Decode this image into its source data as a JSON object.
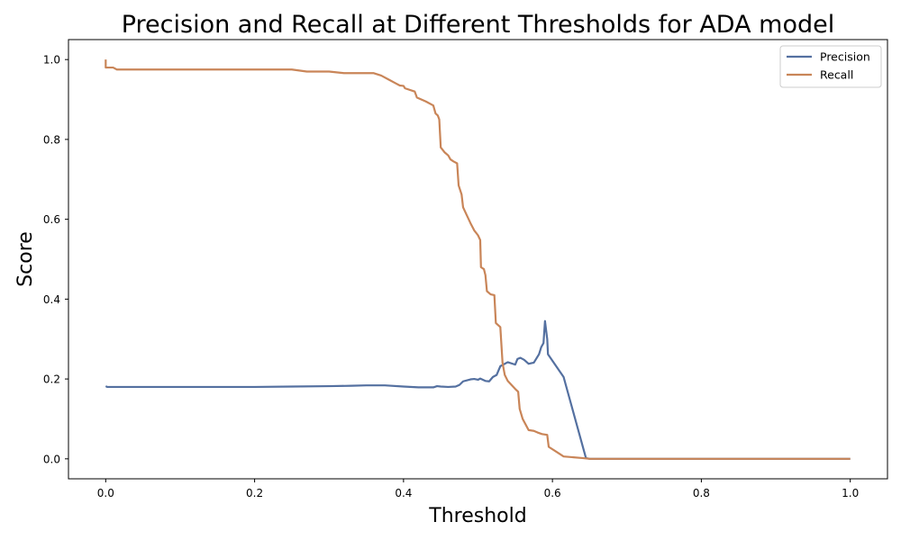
{
  "chart_data": {
    "type": "line",
    "title": "Precision and Recall at Different Thresholds for ADA  model",
    "xlabel": "Threshold",
    "ylabel": "Score",
    "xlim": [
      -0.05,
      1.05
    ],
    "ylim": [
      -0.05,
      1.05
    ],
    "xticks": [
      0.0,
      0.2,
      0.4,
      0.6,
      0.8,
      1.0
    ],
    "xtick_labels": [
      "0.0",
      "0.2",
      "0.4",
      "0.6",
      "0.8",
      "1.0"
    ],
    "yticks": [
      0.0,
      0.2,
      0.4,
      0.6,
      0.8,
      1.0
    ],
    "ytick_labels": [
      "0.0",
      "0.2",
      "0.4",
      "0.6",
      "0.8",
      "1.0"
    ],
    "grid": false,
    "legend": "top-right",
    "series": [
      {
        "name": "Precision",
        "color": "#5470a0",
        "points": [
          [
            0.0,
            0.182
          ],
          [
            0.002,
            0.18
          ],
          [
            0.02,
            0.18
          ],
          [
            0.1,
            0.18
          ],
          [
            0.2,
            0.18
          ],
          [
            0.25,
            0.181
          ],
          [
            0.3,
            0.182
          ],
          [
            0.33,
            0.183
          ],
          [
            0.35,
            0.184
          ],
          [
            0.375,
            0.184
          ],
          [
            0.4,
            0.181
          ],
          [
            0.42,
            0.179
          ],
          [
            0.44,
            0.179
          ],
          [
            0.445,
            0.182
          ],
          [
            0.45,
            0.181
          ],
          [
            0.46,
            0.18
          ],
          [
            0.47,
            0.181
          ],
          [
            0.475,
            0.185
          ],
          [
            0.48,
            0.194
          ],
          [
            0.49,
            0.199
          ],
          [
            0.495,
            0.2
          ],
          [
            0.5,
            0.198
          ],
          [
            0.503,
            0.201
          ],
          [
            0.51,
            0.195
          ],
          [
            0.515,
            0.194
          ],
          [
            0.52,
            0.205
          ],
          [
            0.525,
            0.21
          ],
          [
            0.53,
            0.232
          ],
          [
            0.54,
            0.242
          ],
          [
            0.55,
            0.236
          ],
          [
            0.553,
            0.25
          ],
          [
            0.557,
            0.253
          ],
          [
            0.562,
            0.248
          ],
          [
            0.568,
            0.238
          ],
          [
            0.575,
            0.241
          ],
          [
            0.578,
            0.25
          ],
          [
            0.582,
            0.262
          ],
          [
            0.585,
            0.28
          ],
          [
            0.588,
            0.29
          ],
          [
            0.59,
            0.345
          ],
          [
            0.593,
            0.3
          ],
          [
            0.594,
            0.262
          ],
          [
            0.615,
            0.205
          ],
          [
            0.645,
            0.002
          ],
          [
            0.65,
            0.0
          ],
          [
            1.0,
            0.0
          ]
        ]
      },
      {
        "name": "Recall",
        "color": "#c98558",
        "points": [
          [
            0.0,
            1.0
          ],
          [
            0.0,
            0.98
          ],
          [
            0.01,
            0.98
          ],
          [
            0.015,
            0.975
          ],
          [
            0.1,
            0.975
          ],
          [
            0.2,
            0.975
          ],
          [
            0.25,
            0.975
          ],
          [
            0.27,
            0.97
          ],
          [
            0.3,
            0.97
          ],
          [
            0.32,
            0.966
          ],
          [
            0.36,
            0.966
          ],
          [
            0.37,
            0.96
          ],
          [
            0.38,
            0.95
          ],
          [
            0.39,
            0.94
          ],
          [
            0.395,
            0.935
          ],
          [
            0.4,
            0.934
          ],
          [
            0.402,
            0.928
          ],
          [
            0.415,
            0.92
          ],
          [
            0.418,
            0.905
          ],
          [
            0.43,
            0.895
          ],
          [
            0.44,
            0.885
          ],
          [
            0.443,
            0.865
          ],
          [
            0.446,
            0.86
          ],
          [
            0.448,
            0.85
          ],
          [
            0.45,
            0.78
          ],
          [
            0.455,
            0.768
          ],
          [
            0.46,
            0.76
          ],
          [
            0.463,
            0.75
          ],
          [
            0.467,
            0.745
          ],
          [
            0.472,
            0.74
          ],
          [
            0.474,
            0.685
          ],
          [
            0.478,
            0.662
          ],
          [
            0.48,
            0.63
          ],
          [
            0.485,
            0.61
          ],
          [
            0.49,
            0.59
          ],
          [
            0.495,
            0.572
          ],
          [
            0.5,
            0.56
          ],
          [
            0.503,
            0.548
          ],
          [
            0.504,
            0.48
          ],
          [
            0.508,
            0.475
          ],
          [
            0.51,
            0.46
          ],
          [
            0.512,
            0.42
          ],
          [
            0.517,
            0.412
          ],
          [
            0.522,
            0.41
          ],
          [
            0.524,
            0.34
          ],
          [
            0.53,
            0.33
          ],
          [
            0.533,
            0.24
          ],
          [
            0.536,
            0.21
          ],
          [
            0.54,
            0.195
          ],
          [
            0.55,
            0.175
          ],
          [
            0.554,
            0.168
          ],
          [
            0.556,
            0.125
          ],
          [
            0.56,
            0.1
          ],
          [
            0.568,
            0.072
          ],
          [
            0.575,
            0.07
          ],
          [
            0.58,
            0.066
          ],
          [
            0.586,
            0.062
          ],
          [
            0.593,
            0.06
          ],
          [
            0.595,
            0.03
          ],
          [
            0.605,
            0.018
          ],
          [
            0.615,
            0.006
          ],
          [
            0.64,
            0.002
          ],
          [
            0.65,
            0.0
          ],
          [
            1.0,
            0.0
          ]
        ]
      }
    ]
  }
}
